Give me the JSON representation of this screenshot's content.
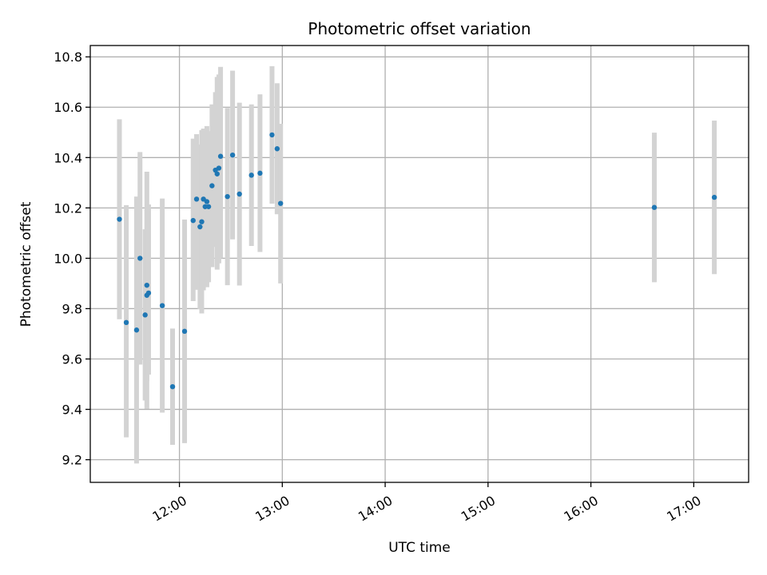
{
  "chart_data": {
    "type": "scatter",
    "title": "Photometric offset variation",
    "xlabel": "UTC time",
    "ylabel": "Photometric offset",
    "x_unit": "UTC hours",
    "xlim": [
      "11:08",
      "17:32"
    ],
    "ylim": [
      9.11,
      10.845
    ],
    "x_ticks": [
      "12:00",
      "13:00",
      "14:00",
      "15:00",
      "16:00",
      "17:00"
    ],
    "y_ticks": [
      "9.2",
      "9.4",
      "9.6",
      "9.8",
      "10.0",
      "10.2",
      "10.4",
      "10.6",
      "10.8"
    ],
    "grid": true,
    "legend": "none",
    "colors": {
      "point": "#1f77b4",
      "error_bar": "#d3d3d3"
    },
    "points": [
      {
        "x": "11:25",
        "y": 10.155,
        "err_low": 9.758,
        "err_high": 10.552
      },
      {
        "x": "11:29",
        "y": 9.745,
        "err_low": 9.289,
        "err_high": 10.211
      },
      {
        "x": "11:35",
        "y": 9.715,
        "err_low": 9.185,
        "err_high": 10.245
      },
      {
        "x": "11:37",
        "y": 10.0,
        "err_low": 9.578,
        "err_high": 10.422
      },
      {
        "x": "11:40",
        "y": 9.775,
        "err_low": 9.435,
        "err_high": 10.115
      },
      {
        "x": "11:41",
        "y": 9.893,
        "err_low": 9.402,
        "err_high": 10.344
      },
      {
        "x": "11:41",
        "y": 9.853,
        "err_low": 9.512,
        "err_high": 10.196
      },
      {
        "x": "11:42",
        "y": 9.862,
        "err_low": 9.538,
        "err_high": 10.214
      },
      {
        "x": "11:50",
        "y": 9.812,
        "err_low": 9.387,
        "err_high": 10.237
      },
      {
        "x": "11:56",
        "y": 9.49,
        "err_low": 9.259,
        "err_high": 9.721
      },
      {
        "x": "12:03",
        "y": 9.71,
        "err_low": 9.266,
        "err_high": 10.154
      },
      {
        "x": "12:08",
        "y": 10.15,
        "err_low": 9.83,
        "err_high": 10.475
      },
      {
        "x": "12:10",
        "y": 10.235,
        "err_low": 9.875,
        "err_high": 10.493
      },
      {
        "x": "12:12",
        "y": 10.125,
        "err_low": 9.798,
        "err_high": 10.452
      },
      {
        "x": "12:13",
        "y": 10.145,
        "err_low": 9.781,
        "err_high": 10.509
      },
      {
        "x": "12:14",
        "y": 10.235,
        "err_low": 9.873,
        "err_high": 10.515
      },
      {
        "x": "12:15",
        "y": 10.205,
        "err_low": 9.895,
        "err_high": 10.51
      },
      {
        "x": "12:16",
        "y": 10.225,
        "err_low": 9.885,
        "err_high": 10.525
      },
      {
        "x": "12:17",
        "y": 10.205,
        "err_low": 9.905,
        "err_high": 10.505
      },
      {
        "x": "12:19",
        "y": 10.288,
        "err_low": 9.965,
        "err_high": 10.611
      },
      {
        "x": "12:21",
        "y": 10.35,
        "err_low": 10.045,
        "err_high": 10.66
      },
      {
        "x": "12:22",
        "y": 10.335,
        "err_low": 9.955,
        "err_high": 10.72
      },
      {
        "x": "12:23",
        "y": 10.358,
        "err_low": 9.98,
        "err_high": 10.73
      },
      {
        "x": "12:24",
        "y": 10.405,
        "err_low": 10.0,
        "err_high": 10.76
      },
      {
        "x": "12:28",
        "y": 10.245,
        "err_low": 9.893,
        "err_high": 10.597
      },
      {
        "x": "12:31",
        "y": 10.41,
        "err_low": 10.075,
        "err_high": 10.745
      },
      {
        "x": "12:35",
        "y": 10.255,
        "err_low": 9.892,
        "err_high": 10.618
      },
      {
        "x": "12:42",
        "y": 10.33,
        "err_low": 10.049,
        "err_high": 10.611
      },
      {
        "x": "12:47",
        "y": 10.338,
        "err_low": 10.025,
        "err_high": 10.651
      },
      {
        "x": "12:54",
        "y": 10.49,
        "err_low": 10.217,
        "err_high": 10.763
      },
      {
        "x": "12:57",
        "y": 10.435,
        "err_low": 10.175,
        "err_high": 10.695
      },
      {
        "x": "12:59",
        "y": 10.218,
        "err_low": 9.9,
        "err_high": 10.534
      },
      {
        "x": "16:37",
        "y": 10.202,
        "err_low": 9.905,
        "err_high": 10.499
      },
      {
        "x": "17:12",
        "y": 10.242,
        "err_low": 9.937,
        "err_high": 10.547
      }
    ]
  }
}
